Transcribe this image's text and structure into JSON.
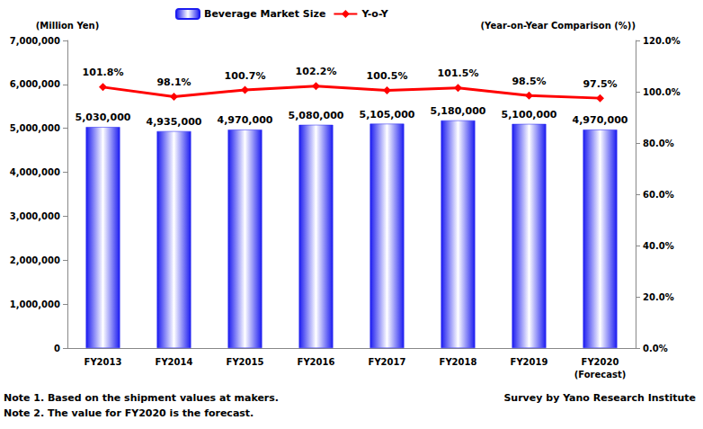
{
  "chart_data": {
    "type": "bar",
    "categories": [
      "FY2013",
      "FY2014",
      "FY2015",
      "FY2016",
      "FY2017",
      "FY2018",
      "FY2019",
      "FY2020\n(Forecast)"
    ],
    "ylabel": "(Million Yen)",
    "y2label": "(Year-on-Year Comparison (%))",
    "ylim": [
      0,
      7000000
    ],
    "yticks": [
      0,
      {
        "value": 1000000,
        "label": "1,000,000"
      },
      {
        "value": 2000000,
        "label": "2,000,000"
      },
      {
        "value": 3000000,
        "label": "3,000,000"
      },
      {
        "value": 4000000,
        "label": "4,000,000"
      },
      {
        "value": 5000000,
        "label": "5,000,000"
      },
      {
        "value": 6000000,
        "label": "6,000,000"
      },
      {
        "value": 7000000,
        "label": "7,000,000"
      }
    ],
    "y2lim": [
      0,
      120
    ],
    "y2ticks": [
      {
        "value": 0,
        "label": "0.0%"
      },
      {
        "value": 20,
        "label": "20.0%"
      },
      {
        "value": 40,
        "label": "40.0%"
      },
      {
        "value": 60,
        "label": "60.0%"
      },
      {
        "value": 80,
        "label": "80.0%"
      },
      {
        "value": 100,
        "label": "100.0%"
      },
      {
        "value": 120,
        "label": "120.0%"
      }
    ],
    "grid": false,
    "legend": "top",
    "data_labels": true,
    "series": [
      {
        "name": "Beverage Market Size",
        "type": "bar",
        "color": "#1c1cf0",
        "values": [
          5030000,
          4935000,
          4970000,
          5080000,
          5105000,
          5180000,
          5100000,
          4970000
        ],
        "value_labels": [
          "5,030,000",
          "4,935,000",
          "4,970,000",
          "5,080,000",
          "5,105,000",
          "5,180,000",
          "5,100,000",
          "4,970,000"
        ]
      },
      {
        "name": "Y-o-Y",
        "type": "line",
        "axis": "y2",
        "color": "#ff0000",
        "marker": "diamond",
        "values": [
          101.8,
          98.1,
          100.7,
          102.2,
          100.5,
          101.5,
          98.5,
          97.5
        ],
        "value_labels": [
          "101.8%",
          "98.1%",
          "100.7%",
          "102.2%",
          "100.5%",
          "101.5%",
          "98.5%",
          "97.5%"
        ]
      }
    ],
    "notes": [
      "Note 1. Based on the shipment values at makers.",
      "Note 2. The value for FY2020 is the forecast."
    ],
    "source": "Survey by Yano Research Institute"
  }
}
